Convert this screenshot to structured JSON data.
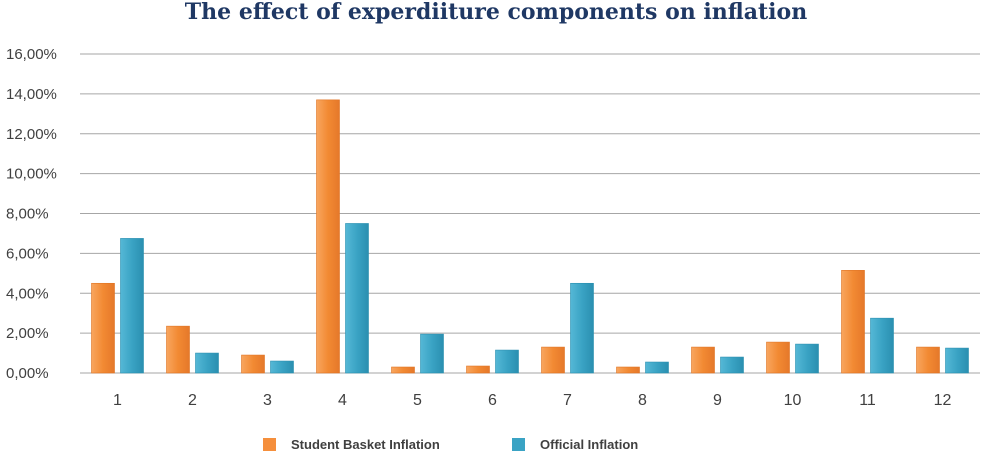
{
  "chart_data": {
    "type": "bar",
    "title": "The effect of experdiiture components on inflation",
    "xlabel": "",
    "ylabel": "",
    "categories": [
      "1",
      "2",
      "3",
      "4",
      "5",
      "6",
      "7",
      "8",
      "9",
      "10",
      "11",
      "12"
    ],
    "y_ticks": [
      "0,00%",
      "2,00%",
      "4,00%",
      "6,00%",
      "8,00%",
      "10,00%",
      "12,00%",
      "14,00%",
      "16,00%"
    ],
    "ylim": [
      0,
      16
    ],
    "grid": true,
    "legend_position": "bottom",
    "series": [
      {
        "name": "Student Basket Inflation",
        "color": "#f58f3c",
        "values": [
          4.5,
          2.35,
          0.9,
          13.7,
          0.3,
          0.35,
          1.3,
          0.3,
          1.3,
          1.55,
          5.15,
          1.3
        ]
      },
      {
        "name": "Official Inflation",
        "color": "#3aa3c4",
        "values": [
          6.75,
          1.0,
          0.6,
          7.5,
          1.95,
          1.15,
          4.5,
          0.55,
          0.8,
          1.45,
          2.75,
          1.25
        ]
      }
    ]
  }
}
